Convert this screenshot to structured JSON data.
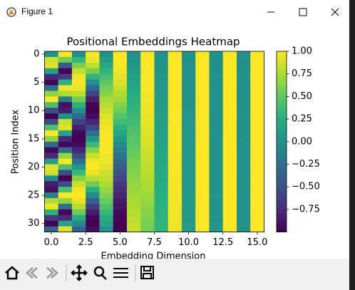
{
  "window_title": "Figure 1",
  "chart_data": {
    "type": "heatmap",
    "title": "Positional Embeddings Heatmap",
    "x_label": "Embedding Dimension",
    "y_label": "Position Index",
    "colormap": "viridis",
    "xlim": [
      -0.5,
      15.5
    ],
    "xticks": [
      {
        "value": 0,
        "label": "0.0"
      },
      2.5,
      {
        "value": 5,
        "label": "5.0"
      },
      7.5,
      {
        "value": 10,
        "label": "10.0"
      },
      12.5,
      {
        "value": 15,
        "label": "15.0"
      }
    ],
    "ylim": [
      31.5,
      -0.5
    ],
    "yticks": [
      0,
      5,
      10,
      15,
      20,
      25,
      30
    ],
    "clim": [
      -1,
      1
    ],
    "cticks": [
      {
        "value": -0.75,
        "label": "−0.75"
      },
      {
        "value": -0.5,
        "label": "−0.50"
      },
      {
        "value": -0.25,
        "label": "−0.25"
      },
      {
        "value": 0,
        "label": "0.00"
      },
      0.25,
      {
        "value": 0.5,
        "label": "0.50"
      },
      0.75,
      {
        "value": 1,
        "label": "1.00"
      }
    ],
    "values": [
      [
        0,
        1,
        0,
        1,
        0,
        1,
        0,
        1,
        0,
        1,
        0,
        1,
        0,
        1,
        0,
        1
      ],
      [
        0.84,
        0.54,
        0.31,
        0.95,
        0.1,
        1,
        0.03,
        1,
        0.01,
        1,
        0,
        1,
        0,
        1,
        0,
        1
      ],
      [
        0.91,
        -0.42,
        0.59,
        0.81,
        0.2,
        0.98,
        0.06,
        1,
        0.02,
        1,
        0.01,
        1,
        0,
        1,
        0,
        1
      ],
      [
        0.14,
        -0.99,
        0.81,
        0.58,
        0.3,
        0.96,
        0.09,
        1,
        0.03,
        1,
        0.01,
        1,
        0,
        1,
        0,
        1
      ],
      [
        -0.76,
        -0.65,
        0.95,
        0.3,
        0.39,
        0.92,
        0.13,
        0.99,
        0.04,
        1,
        0.01,
        1,
        0,
        1,
        0,
        1
      ],
      [
        -0.96,
        0.28,
        1,
        -0.01,
        0.48,
        0.88,
        0.16,
        0.99,
        0.05,
        1,
        0.02,
        1,
        0.01,
        1,
        0,
        1
      ],
      [
        -0.28,
        0.96,
        0.95,
        -0.32,
        0.56,
        0.83,
        0.19,
        0.98,
        0.06,
        1,
        0.02,
        1,
        0.01,
        1,
        0,
        1
      ],
      [
        0.66,
        0.75,
        0.8,
        -0.6,
        0.64,
        0.76,
        0.22,
        0.98,
        0.07,
        1,
        0.02,
        1,
        0.01,
        1,
        0,
        1
      ],
      [
        0.99,
        -0.15,
        0.57,
        -0.82,
        0.72,
        0.7,
        0.25,
        0.97,
        0.08,
        1,
        0.03,
        1,
        0.01,
        1,
        0,
        1
      ],
      [
        0.41,
        -0.91,
        0.29,
        -0.96,
        0.78,
        0.62,
        0.28,
        0.96,
        0.09,
        1,
        0.03,
        1,
        0.01,
        1,
        0,
        1
      ],
      [
        -0.54,
        -0.84,
        -0.02,
        -1,
        0.84,
        0.54,
        0.31,
        0.95,
        0.1,
        0.99,
        0.03,
        1,
        0.01,
        1,
        0,
        1
      ],
      [
        -1,
        0,
        -0.33,
        -0.94,
        0.89,
        0.45,
        0.34,
        0.94,
        0.11,
        0.99,
        0.03,
        1,
        0.01,
        1,
        0,
        1
      ],
      [
        -0.54,
        0.84,
        -0.61,
        -0.79,
        0.93,
        0.36,
        0.37,
        0.93,
        0.12,
        0.99,
        0.04,
        1,
        0.01,
        1,
        0,
        1
      ],
      [
        0.42,
        0.91,
        -0.82,
        -0.57,
        0.96,
        0.27,
        0.4,
        0.92,
        0.13,
        0.99,
        0.04,
        1,
        0.01,
        1,
        0,
        1
      ],
      [
        0.99,
        0.14,
        -0.96,
        -0.28,
        0.99,
        0.17,
        0.43,
        0.9,
        0.14,
        0.99,
        0.04,
        1,
        0.01,
        1,
        0,
        1
      ],
      [
        0.65,
        -0.76,
        -1,
        0.03,
        1,
        0.07,
        0.46,
        0.89,
        0.15,
        0.99,
        0.05,
        1,
        0.02,
        1,
        0,
        1
      ],
      [
        -0.29,
        -0.96,
        -0.94,
        0.34,
        1,
        -0.03,
        0.48,
        0.88,
        0.16,
        0.99,
        0.05,
        1,
        0.02,
        1,
        0.01,
        1
      ],
      [
        -0.96,
        -0.28,
        -0.79,
        0.62,
        0.99,
        -0.13,
        0.51,
        0.86,
        0.17,
        0.99,
        0.05,
        1,
        0.02,
        1,
        0.01,
        1
      ],
      [
        -0.75,
        0.66,
        -0.56,
        0.83,
        0.97,
        -0.23,
        0.54,
        0.84,
        0.18,
        0.98,
        0.06,
        1,
        0.02,
        1,
        0.01,
        1
      ],
      [
        0.15,
        0.99,
        -0.27,
        0.96,
        0.95,
        -0.32,
        0.57,
        0.82,
        0.19,
        0.98,
        0.06,
        1,
        0.02,
        1,
        0.01,
        1
      ],
      [
        0.91,
        0.41,
        0.04,
        1,
        0.91,
        -0.42,
        0.59,
        0.81,
        0.2,
        0.98,
        0.06,
        1,
        0.02,
        1,
        0.01,
        1
      ],
      [
        0.84,
        -0.55,
        0.35,
        0.94,
        0.86,
        -0.5,
        0.62,
        0.79,
        0.21,
        0.98,
        0.07,
        1,
        0.02,
        1,
        0.01,
        1
      ],
      [
        -0.01,
        -1,
        0.62,
        0.78,
        0.81,
        -0.59,
        0.64,
        0.77,
        0.22,
        0.98,
        0.07,
        1,
        0.02,
        1,
        0.01,
        1
      ],
      [
        -0.85,
        -0.53,
        0.84,
        0.55,
        0.75,
        -0.67,
        0.67,
        0.75,
        0.23,
        0.97,
        0.07,
        1,
        0.02,
        1,
        0.01,
        1
      ],
      [
        -0.91,
        0.42,
        0.96,
        0.26,
        0.68,
        -0.74,
        0.69,
        0.73,
        0.24,
        0.97,
        0.08,
        1,
        0.02,
        1,
        0.01,
        1
      ],
      [
        -0.13,
        0.99,
        1,
        -0.05,
        0.6,
        -0.8,
        0.71,
        0.7,
        0.25,
        0.97,
        0.08,
        1,
        0.03,
        1,
        0.01,
        1
      ],
      [
        0.76,
        0.65,
        0.93,
        -0.36,
        0.52,
        -0.86,
        0.73,
        0.68,
        0.26,
        0.97,
        0.08,
        1,
        0.03,
        1,
        0.01,
        1
      ],
      [
        0.96,
        -0.29,
        0.77,
        -0.64,
        0.43,
        -0.9,
        0.75,
        0.66,
        0.27,
        0.96,
        0.09,
        1,
        0.03,
        1,
        0.01,
        1
      ],
      [
        0.27,
        -0.96,
        0.54,
        -0.84,
        0.33,
        -0.94,
        0.77,
        0.63,
        0.28,
        0.96,
        0.09,
        1,
        0.03,
        1,
        0.01,
        1
      ],
      [
        -0.66,
        -0.75,
        0.24,
        -0.97,
        0.24,
        -0.97,
        0.79,
        0.61,
        0.29,
        0.96,
        0.09,
        1,
        0.03,
        1,
        0.01,
        1
      ],
      [
        -0.99,
        0.15,
        -0.06,
        -1,
        0.14,
        -0.99,
        0.81,
        0.58,
        0.3,
        0.96,
        0.09,
        1,
        0.03,
        1,
        0.01,
        1
      ],
      [
        -0.4,
        0.91,
        -0.37,
        -0.93,
        0.04,
        -1,
        0.83,
        0.56,
        0.31,
        0.95,
        0.1,
        1,
        0.03,
        1,
        0.01,
        1
      ]
    ]
  }
}
